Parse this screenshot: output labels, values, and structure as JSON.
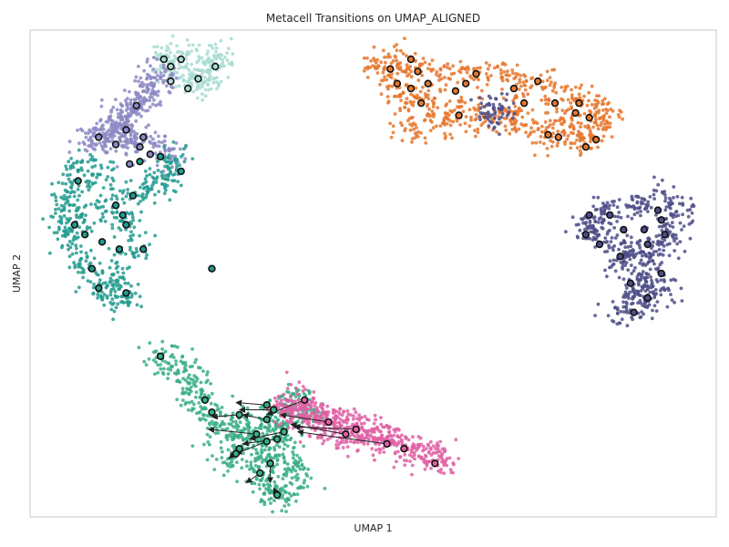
{
  "chart_data": {
    "type": "scatter",
    "title": "Metacell Transitions on UMAP_ALIGNED",
    "xlabel": "UMAP 1",
    "ylabel": "UMAP 2",
    "xlim": [
      0,
      100
    ],
    "ylim": [
      0,
      100
    ],
    "grid": false,
    "legend": "none",
    "colors": {
      "frame": "#c8c8c8",
      "arrow": "#222222",
      "metacell_edge": "#111111"
    },
    "series": [
      {
        "color": "#a8dcd1",
        "anchors": [
          [
            19.5,
            94
          ],
          [
            20.5,
            92
          ],
          [
            23,
            89
          ],
          [
            26,
            91
          ],
          [
            27,
            92.5
          ],
          [
            27.5,
            95
          ],
          [
            25,
            90
          ],
          [
            22,
            95
          ]
        ],
        "metacells": [
          [
            19.5,
            94
          ],
          [
            20.5,
            92.5
          ],
          [
            22,
            94
          ],
          [
            27,
            92.5
          ],
          [
            20.5,
            89.5
          ],
          [
            23,
            88
          ],
          [
            24.5,
            90
          ]
        ]
      },
      {
        "color": "#8c88c4",
        "anchors": [
          [
            16,
            85
          ],
          [
            14,
            83
          ],
          [
            12,
            80
          ],
          [
            10,
            78
          ],
          [
            9,
            77
          ],
          [
            11,
            79
          ],
          [
            13,
            81
          ],
          [
            15,
            84
          ],
          [
            17,
            87
          ],
          [
            18,
            89
          ],
          [
            19,
            91
          ],
          [
            15,
            78
          ],
          [
            14,
            76
          ],
          [
            18,
            76
          ],
          [
            20,
            74
          ]
        ],
        "metacells": [
          [
            15.5,
            84.5
          ],
          [
            14,
            79.5
          ],
          [
            12.5,
            76.5
          ],
          [
            10,
            78
          ],
          [
            17.5,
            74.5
          ],
          [
            14.5,
            72.5
          ],
          [
            16,
            76
          ],
          [
            16.5,
            78
          ]
        ]
      },
      {
        "color": "#239b8f",
        "anchors": [
          [
            7,
            72
          ],
          [
            6,
            68
          ],
          [
            5.5,
            64
          ],
          [
            5,
            60
          ],
          [
            6,
            57
          ],
          [
            8,
            52
          ],
          [
            10,
            48
          ],
          [
            12,
            46
          ],
          [
            14,
            45
          ],
          [
            13,
            50
          ],
          [
            15,
            55
          ],
          [
            14,
            60
          ],
          [
            12,
            64
          ],
          [
            16,
            66
          ],
          [
            18,
            69
          ],
          [
            20,
            70
          ],
          [
            21,
            73
          ],
          [
            10,
            70
          ],
          [
            8,
            62
          ]
        ],
        "metacells": [
          [
            7,
            69
          ],
          [
            6.5,
            60
          ],
          [
            8,
            58
          ],
          [
            9,
            51
          ],
          [
            10,
            47
          ],
          [
            14,
            46
          ],
          [
            13.5,
            62
          ],
          [
            12.5,
            64
          ],
          [
            10.5,
            56.5
          ],
          [
            13,
            55
          ],
          [
            16.5,
            55
          ],
          [
            16,
            73
          ],
          [
            19,
            74
          ],
          [
            22,
            71
          ],
          [
            26.5,
            51
          ],
          [
            14,
            60
          ],
          [
            15,
            66
          ]
        ]
      },
      {
        "color": "#e6772e",
        "anchors": [
          [
            50.5,
            92
          ],
          [
            53,
            93
          ],
          [
            56,
            92
          ],
          [
            60,
            91
          ],
          [
            64,
            91
          ],
          [
            68,
            90.5
          ],
          [
            72,
            89
          ],
          [
            76,
            88
          ],
          [
            80,
            86
          ],
          [
            83,
            84
          ],
          [
            84,
            82
          ],
          [
            82,
            79
          ],
          [
            80,
            77.5
          ],
          [
            77,
            78
          ],
          [
            74,
            79
          ],
          [
            70,
            81
          ],
          [
            66,
            82
          ],
          [
            62,
            84
          ],
          [
            58,
            85
          ],
          [
            55,
            86
          ],
          [
            53,
            88
          ],
          [
            56,
            80
          ],
          [
            60,
            81
          ],
          [
            70,
            84
          ],
          [
            78,
            82
          ]
        ],
        "metacells": [
          [
            52.5,
            92
          ],
          [
            55.5,
            94
          ],
          [
            56.5,
            91.5
          ],
          [
            53.5,
            89
          ],
          [
            55.5,
            88
          ],
          [
            58,
            89
          ],
          [
            57,
            85
          ],
          [
            62,
            87.5
          ],
          [
            62.5,
            82.5
          ],
          [
            63.5,
            89
          ],
          [
            65,
            91
          ],
          [
            70.5,
            88
          ],
          [
            72,
            85
          ],
          [
            74,
            89.5
          ],
          [
            76.5,
            85
          ],
          [
            79.5,
            83
          ],
          [
            80,
            85
          ],
          [
            81.5,
            82
          ],
          [
            82.5,
            77.5
          ],
          [
            75.5,
            78.5
          ],
          [
            77,
            78
          ],
          [
            81,
            76
          ]
        ]
      },
      {
        "color": "#4e4e88",
        "anchors": [
          [
            81,
            60
          ],
          [
            83,
            62
          ],
          [
            86,
            63
          ],
          [
            90,
            64
          ],
          [
            93,
            65
          ],
          [
            94,
            62
          ],
          [
            93.5,
            59
          ],
          [
            92,
            56
          ],
          [
            90,
            53
          ],
          [
            88,
            55
          ],
          [
            85,
            56
          ],
          [
            82,
            58
          ],
          [
            86,
            52
          ],
          [
            90,
            50
          ],
          [
            92,
            48
          ],
          [
            88,
            45
          ],
          [
            86,
            42
          ],
          [
            90,
            44
          ],
          [
            89,
            47
          ],
          [
            67,
            82
          ],
          [
            68,
            84
          ]
        ],
        "metacells": [
          [
            81.5,
            62
          ],
          [
            84.5,
            62
          ],
          [
            86.5,
            59
          ],
          [
            83,
            56
          ],
          [
            81,
            58
          ],
          [
            86,
            53.5
          ],
          [
            89.5,
            59
          ],
          [
            91.5,
            63
          ],
          [
            92,
            61
          ],
          [
            92.5,
            58
          ],
          [
            90,
            56
          ],
          [
            92,
            50
          ],
          [
            87.5,
            48
          ],
          [
            90,
            45
          ],
          [
            88,
            42
          ]
        ]
      },
      {
        "color": "#3aae86",
        "anchors": [
          [
            19,
            33
          ],
          [
            21,
            31
          ],
          [
            23,
            29
          ],
          [
            24,
            26
          ],
          [
            25,
            23
          ],
          [
            27,
            21
          ],
          [
            30,
            20
          ],
          [
            33,
            18
          ],
          [
            35,
            17
          ],
          [
            37,
            18
          ],
          [
            36,
            14
          ],
          [
            34,
            13
          ],
          [
            33,
            10
          ],
          [
            34,
            7
          ],
          [
            36,
            5
          ],
          [
            37,
            4
          ],
          [
            39,
            8
          ],
          [
            38,
            11
          ],
          [
            36,
            21
          ],
          [
            38,
            24
          ],
          [
            39,
            22
          ],
          [
            40,
            20
          ],
          [
            31,
            16
          ],
          [
            29,
            12
          ],
          [
            28,
            17
          ]
        ],
        "metacells": [
          [
            19,
            33
          ],
          [
            25.5,
            24
          ],
          [
            26.5,
            21.5
          ],
          [
            30.5,
            21
          ],
          [
            33,
            17
          ],
          [
            34.5,
            20
          ],
          [
            34.5,
            23
          ],
          [
            35.5,
            22
          ],
          [
            37,
            17.5
          ],
          [
            36,
            16
          ],
          [
            34.5,
            15.5
          ],
          [
            30.5,
            14
          ],
          [
            30,
            13
          ],
          [
            33.5,
            9
          ],
          [
            35,
            11
          ],
          [
            36,
            4.5
          ]
        ]
      },
      {
        "color": "#e060a4",
        "anchors": [
          [
            37,
            23
          ],
          [
            39,
            22
          ],
          [
            41,
            21
          ],
          [
            43,
            20
          ],
          [
            45,
            19
          ],
          [
            47,
            18
          ],
          [
            49,
            17
          ],
          [
            51,
            16
          ],
          [
            53,
            15.5
          ],
          [
            55,
            14
          ],
          [
            57,
            13.5
          ],
          [
            59,
            12.5
          ],
          [
            60,
            11.5
          ],
          [
            42,
            18
          ],
          [
            46,
            16
          ],
          [
            40,
            24
          ],
          [
            38,
            21
          ],
          [
            44,
            21
          ],
          [
            48,
            19
          ],
          [
            52,
            17
          ]
        ],
        "metacells": [
          [
            40,
            24
          ],
          [
            43.5,
            19.5
          ],
          [
            46,
            17
          ],
          [
            47.5,
            18
          ],
          [
            52,
            15
          ],
          [
            54.5,
            14
          ],
          [
            59,
            11
          ]
        ]
      }
    ],
    "arrows": [
      {
        "from": [
          34.5,
          23
        ],
        "to": [
          30,
          23.5
        ]
      },
      {
        "from": [
          35.5,
          22
        ],
        "to": [
          30.5,
          22
        ]
      },
      {
        "from": [
          34.5,
          20
        ],
        "to": [
          31,
          21
        ]
      },
      {
        "from": [
          40,
          24
        ],
        "to": [
          34.5,
          21
        ]
      },
      {
        "from": [
          43.5,
          19.5
        ],
        "to": [
          36.5,
          21
        ]
      },
      {
        "from": [
          46,
          17
        ],
        "to": [
          38,
          19
        ]
      },
      {
        "from": [
          47.5,
          18
        ],
        "to": [
          38.5,
          18.5
        ]
      },
      {
        "from": [
          52,
          15
        ],
        "to": [
          39,
          17.5
        ]
      },
      {
        "from": [
          33,
          17
        ],
        "to": [
          26,
          18
        ]
      },
      {
        "from": [
          30.5,
          21
        ],
        "to": [
          26.5,
          20.5
        ]
      },
      {
        "from": [
          37,
          17.5
        ],
        "to": [
          32,
          16
        ]
      },
      {
        "from": [
          36,
          16
        ],
        "to": [
          31,
          15
        ]
      },
      {
        "from": [
          34.5,
          15.5
        ],
        "to": [
          30,
          13
        ]
      },
      {
        "from": [
          33.5,
          9
        ],
        "to": [
          31.5,
          7
        ]
      },
      {
        "from": [
          35,
          11
        ],
        "to": [
          35,
          7
        ]
      },
      {
        "from": [
          30.5,
          14
        ],
        "to": [
          29,
          12
        ]
      },
      {
        "from": [
          36,
          4.5
        ],
        "to": [
          35.5,
          6
        ]
      },
      {
        "from": [
          19,
          33
        ],
        "to": [
          19.5,
          32.5
        ]
      }
    ]
  }
}
